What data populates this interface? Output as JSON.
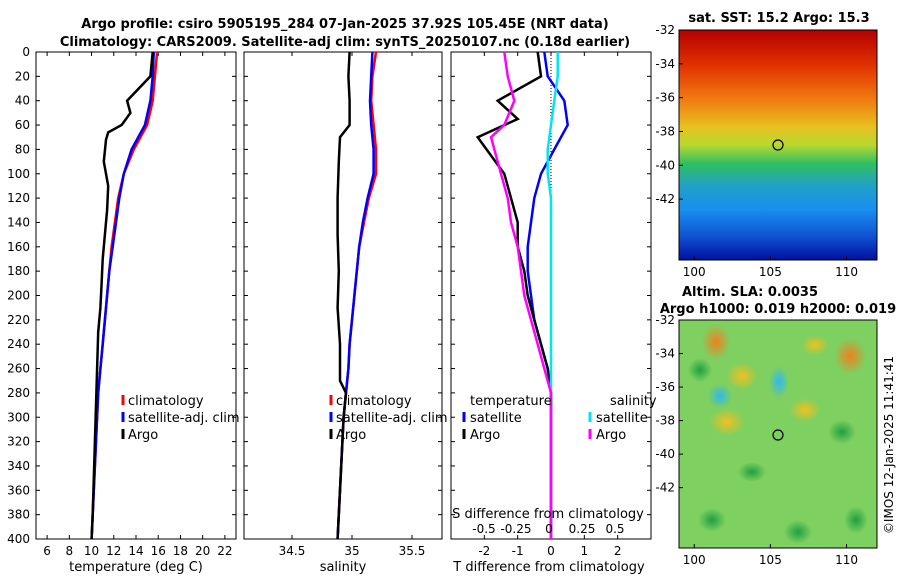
{
  "title_line1": "Argo profile: csiro 5905195_284 07-Jan-2025 37.92S 105.45E (NRT data)",
  "title_line2": "Climatology: CARS2009. Satellite-adj clim: synTS_20250107.nc (0.18d earlier)",
  "depth_ticks": [
    0,
    20,
    40,
    60,
    80,
    100,
    120,
    140,
    160,
    180,
    200,
    220,
    240,
    260,
    280,
    300,
    320,
    340,
    360,
    380,
    400
  ],
  "colors": {
    "climatology": "#ff0000",
    "satellite": "#0000ff",
    "argo": "#000000",
    "sat_salinity": "#00e5ee",
    "argo_salinity": "#ff00ff"
  },
  "panels": {
    "temperature": {
      "xlabel": "temperature (deg C)",
      "xlim": [
        5,
        23
      ],
      "ticks": [
        6,
        8,
        10,
        12,
        14,
        16,
        18,
        20,
        22
      ],
      "legend": [
        "climatology",
        "satellite-adj. clim",
        "Argo"
      ]
    },
    "salinity": {
      "xlabel": "salinity",
      "xlim": [
        34.1,
        35.75
      ],
      "ticks": [
        34.5,
        35,
        35.5
      ],
      "legend": [
        "climatology",
        "satellite-adj. clim",
        "Argo"
      ]
    },
    "difference": {
      "xlabel": "T difference from climatology",
      "xlim": [
        -3,
        3
      ],
      "ticks": [
        -2,
        -1,
        0,
        1,
        2
      ],
      "top_label": "S difference from climatology",
      "s_ticks": [
        "-0.5",
        "-0.25",
        "0",
        "0.25",
        "0.5"
      ],
      "legend_temperature_title": "temperature",
      "legend_salinity_title": "salinity",
      "legend_satellite": "satellite",
      "legend_argo": "Argo"
    }
  },
  "sst_map": {
    "title": "sat. SST: 15.2 Argo: 15.3",
    "lat_ticks": [
      -32,
      -34,
      -36,
      -38,
      -40,
      -42
    ],
    "lon_ticks": [
      100,
      105,
      110
    ]
  },
  "sla_map": {
    "title_line1": "Altim. SLA: 0.0035",
    "title_line2": "Argo h1000: 0.019 h2000: 0.019",
    "lat_ticks": [
      -32,
      -34,
      -36,
      -38,
      -40,
      -42
    ],
    "lon_ticks": [
      100,
      105,
      110
    ]
  },
  "credit": "©IMOS 12-Jan-2025 11:41:41",
  "chart_data": [
    {
      "type": "line",
      "title": "temperature profile",
      "xlabel": "temperature (deg C)",
      "ylabel": "depth",
      "ylim": [
        0,
        400
      ],
      "xlim": [
        5,
        23
      ],
      "series": [
        {
          "name": "climatology",
          "x": [
            15.9,
            15.7,
            15.5,
            15.0,
            13.8,
            12.9,
            12.4,
            12.1,
            11.8,
            11.6,
            11.4,
            11.2,
            11.0,
            10.8,
            10.6,
            10.5,
            10.4,
            10.3,
            10.2,
            10.1,
            10.0
          ],
          "y": [
            0,
            20,
            40,
            60,
            80,
            100,
            120,
            140,
            160,
            180,
            200,
            220,
            240,
            260,
            280,
            300,
            320,
            340,
            360,
            380,
            400
          ]
        },
        {
          "name": "satellite-adj. clim",
          "x": [
            15.6,
            15.5,
            15.3,
            14.8,
            13.6,
            12.9,
            12.5,
            12.2,
            11.9,
            11.6,
            11.4,
            11.2,
            11.0,
            10.8,
            10.6,
            10.5,
            10.4,
            10.3,
            10.2,
            10.1,
            10.0
          ],
          "y": [
            0,
            20,
            40,
            60,
            80,
            100,
            120,
            140,
            160,
            180,
            200,
            220,
            240,
            260,
            280,
            300,
            320,
            340,
            360,
            380,
            400
          ]
        },
        {
          "name": "Argo",
          "x": [
            15.5,
            15.3,
            13.2,
            13.5,
            12.7,
            11.5,
            11.3,
            11.1,
            11.5,
            11.4,
            11.2,
            11.0,
            10.9,
            10.8,
            10.6,
            10.5,
            10.4,
            10.3,
            10.2,
            10.1,
            10.0
          ],
          "y": [
            0,
            20,
            40,
            50,
            60,
            66,
            72,
            90,
            110,
            130,
            150,
            170,
            190,
            210,
            230,
            260,
            290,
            320,
            350,
            380,
            400
          ]
        }
      ]
    },
    {
      "type": "line",
      "title": "salinity profile",
      "xlabel": "salinity",
      "ylabel": "depth",
      "ylim": [
        0,
        400
      ],
      "xlim": [
        34.1,
        35.75
      ],
      "series": [
        {
          "name": "climatology",
          "x": [
            35.2,
            35.17,
            35.16,
            35.18,
            35.2,
            35.2,
            35.14,
            35.1,
            35.06,
            35.04,
            35.02,
            35.0,
            34.98,
            34.97,
            34.95,
            34.93,
            34.92,
            34.91,
            34.9,
            34.89,
            34.88
          ],
          "y": [
            0,
            20,
            40,
            60,
            80,
            100,
            120,
            140,
            160,
            180,
            200,
            220,
            240,
            260,
            280,
            300,
            320,
            340,
            360,
            380,
            400
          ]
        },
        {
          "name": "satellite-adj. clim",
          "x": [
            35.17,
            35.16,
            35.15,
            35.16,
            35.18,
            35.18,
            35.13,
            35.09,
            35.06,
            35.04,
            35.02,
            35.0,
            34.98,
            34.97,
            34.95,
            34.93,
            34.92,
            34.91,
            34.9,
            34.89,
            34.88
          ],
          "y": [
            0,
            20,
            40,
            60,
            80,
            100,
            120,
            140,
            160,
            180,
            200,
            220,
            240,
            260,
            280,
            300,
            320,
            340,
            360,
            380,
            400
          ]
        },
        {
          "name": "Argo",
          "x": [
            34.98,
            34.97,
            34.98,
            34.98,
            34.9,
            34.89,
            34.88,
            34.88,
            34.89,
            34.88,
            34.9,
            34.9,
            34.9,
            34.95,
            34.94,
            34.93,
            34.92,
            34.91,
            34.9,
            34.89,
            34.88
          ],
          "y": [
            0,
            20,
            40,
            60,
            70,
            90,
            120,
            150,
            180,
            210,
            240,
            260,
            270,
            280,
            290,
            300,
            320,
            340,
            360,
            380,
            400
          ]
        }
      ]
    },
    {
      "type": "line",
      "title": "difference from climatology",
      "xlabel": "T difference from climatology",
      "ylabel": "depth",
      "ylim": [
        0,
        400
      ],
      "xlim": [
        -3,
        3
      ],
      "series": [
        {
          "name": "satellite (T)",
          "x": [
            -0.2,
            -0.1,
            0.4,
            0.5,
            0.1,
            -0.3,
            -0.5,
            -0.6,
            -0.7,
            -0.7,
            -0.6,
            -0.5,
            -0.3,
            -0.1,
            0.0,
            0.0,
            0.0,
            0.0,
            0.0,
            0.0,
            0.0
          ],
          "y": [
            0,
            20,
            40,
            60,
            80,
            100,
            120,
            140,
            160,
            180,
            200,
            220,
            240,
            260,
            280,
            300,
            320,
            340,
            360,
            380,
            400
          ]
        },
        {
          "name": "Argo (T)",
          "x": [
            -0.4,
            -0.3,
            -1.6,
            -1.0,
            -2.2,
            -1.4,
            -1.2,
            -1.0,
            -1.0,
            -0.8,
            -0.7,
            -0.5,
            -0.3,
            -0.1,
            0.0,
            0.0,
            0.0,
            0.0,
            0.0,
            0.0,
            0.0
          ],
          "y": [
            0,
            20,
            40,
            55,
            70,
            100,
            120,
            140,
            160,
            180,
            200,
            220,
            240,
            260,
            280,
            300,
            320,
            340,
            360,
            380,
            400
          ]
        },
        {
          "name": "satellite (S)",
          "x": [
            0.2,
            0.2,
            0.1,
            0.0,
            -0.1,
            -0.1,
            0.0,
            0.0,
            0.0,
            0.0,
            0.0,
            0.0,
            0.0,
            0.0,
            0.0,
            0.0,
            0.0,
            0.0,
            0.0,
            0.0,
            0.0
          ],
          "y": [
            0,
            20,
            40,
            60,
            80,
            100,
            120,
            140,
            160,
            180,
            200,
            220,
            240,
            260,
            280,
            300,
            320,
            340,
            360,
            380,
            400
          ]
        },
        {
          "name": "Argo (S)",
          "x": [
            -1.4,
            -1.3,
            -1.1,
            -1.4,
            -1.8,
            -1.5,
            -1.3,
            -1.2,
            -1.0,
            -0.9,
            -0.8,
            -0.6,
            -0.4,
            -0.2,
            0.0,
            0.0,
            0.0,
            0.0,
            0.0,
            0.0,
            0.0
          ],
          "y": [
            0,
            20,
            40,
            60,
            70,
            100,
            120,
            140,
            160,
            180,
            200,
            220,
            240,
            260,
            280,
            300,
            320,
            340,
            360,
            380,
            400
          ]
        }
      ]
    }
  ]
}
